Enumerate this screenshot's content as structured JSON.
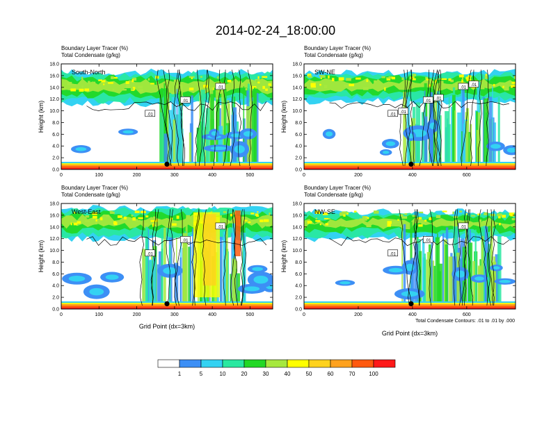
{
  "title": "2014-02-24_18:00:00",
  "footer_note": "Total Condensate Contours: .01 to .01 by .000",
  "colorbar": {
    "colors": [
      "#ffffff",
      "#3d8ff5",
      "#33d2f2",
      "#29e8a0",
      "#22d825",
      "#a6e83e",
      "#ffff00",
      "#ffd21e",
      "#ffa21e",
      "#ff5a0f",
      "#ff1a1a"
    ],
    "labels": [
      "1",
      "5",
      "10",
      "20",
      "30",
      "40",
      "50",
      "60",
      "70",
      "100"
    ]
  },
  "chart_data": [
    {
      "type": "heatmap",
      "panel": "South-North",
      "title": "Boundary Layer Tracer (%)",
      "subtitle": "Total Condensate (g/kg)",
      "xlabel": "",
      "ylabel": "Height (km)",
      "x_ticks": [
        "0",
        "100",
        "200",
        "300",
        "400",
        "500"
      ],
      "xlim": [
        0,
        560
      ],
      "y_ticks": [
        "0.0",
        "2.0",
        "4.0",
        "6.0",
        "8.0",
        "10.0",
        "12.0",
        "14.0",
        "16.0",
        "18.0"
      ],
      "ylim": [
        0,
        18
      ],
      "contour_labels": [
        ".01",
        ".01",
        ".01"
      ],
      "marker_x": 280
    },
    {
      "type": "heatmap",
      "panel": "SW-NE",
      "title": "Boundary Layer Tracer (%)",
      "subtitle": "Total Condensate (g/kg)",
      "xlabel": "",
      "ylabel": "Height (km)",
      "x_ticks": [
        "0",
        "200",
        "400",
        "600"
      ],
      "xlim": [
        0,
        780
      ],
      "y_ticks": [
        "0.0",
        "2.0",
        "4.0",
        "6.0",
        "8.0",
        "10.0",
        "12.0",
        "14.0",
        "16.0",
        "18.0"
      ],
      "ylim": [
        0,
        18
      ],
      "contour_labels": [
        ".01",
        ".01",
        ".01",
        ".01",
        ".01",
        ".01"
      ],
      "marker_x": 395
    },
    {
      "type": "heatmap",
      "panel": "West-East",
      "title": "Boundary Layer Tracer (%)",
      "subtitle": "Total Condensate (g/kg)",
      "xlabel": "Grid Point (dx=3km)",
      "ylabel": "Height (km)",
      "x_ticks": [
        "0",
        "100",
        "200",
        "300",
        "400",
        "500"
      ],
      "xlim": [
        0,
        560
      ],
      "y_ticks": [
        "0.0",
        "2.0",
        "4.0",
        "6.0",
        "8.0",
        "10.0",
        "12.0",
        "14.0",
        "16.0",
        "18.0"
      ],
      "ylim": [
        0,
        18
      ],
      "contour_labels": [
        ".01",
        ".01",
        ".01"
      ],
      "marker_x": 280
    },
    {
      "type": "heatmap",
      "panel": "NW-SE",
      "title": "Boundary Layer Tracer (%)",
      "subtitle": "Total Condensate (g/kg)",
      "xlabel": "Grid Point (dx=3km)",
      "ylabel": "Height (km)",
      "x_ticks": [
        "0",
        "200",
        "400",
        "600"
      ],
      "xlim": [
        0,
        780
      ],
      "y_ticks": [
        "0.0",
        "2.0",
        "4.0",
        "6.0",
        "8.0",
        "10.0",
        "12.0",
        "14.0",
        "16.0",
        "18.0"
      ],
      "ylim": [
        0,
        18
      ],
      "contour_labels": [
        ".01",
        ".01",
        ".01"
      ],
      "marker_x": 395
    }
  ]
}
